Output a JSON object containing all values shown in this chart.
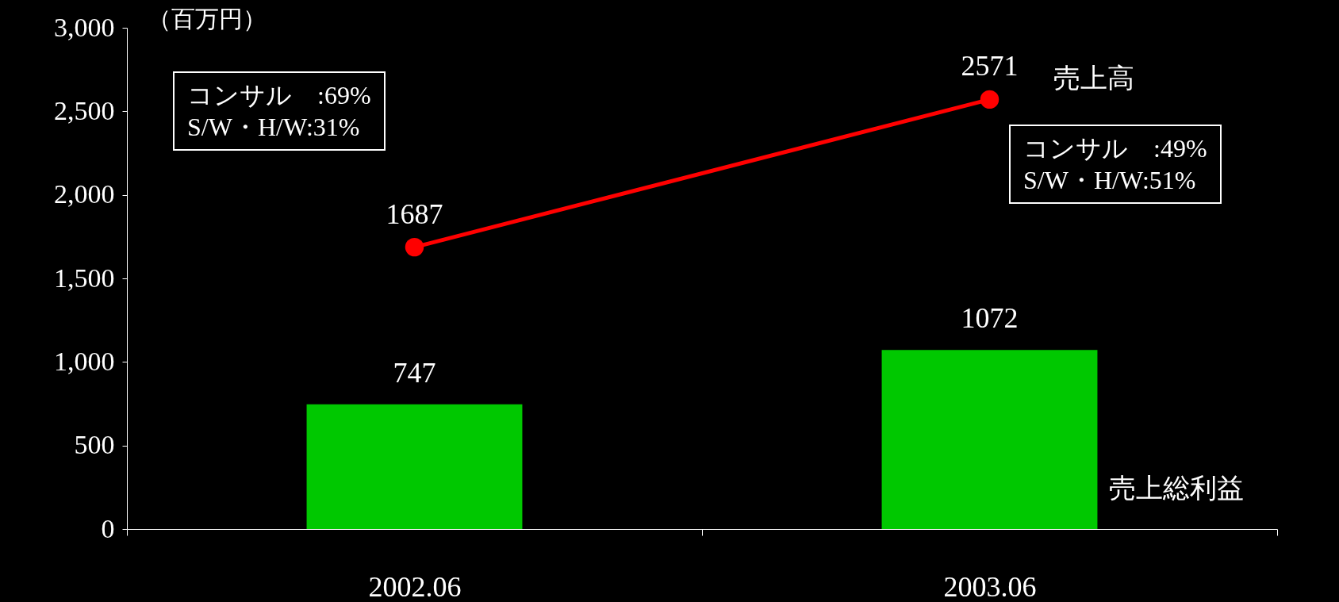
{
  "chart_data": {
    "type": "bar",
    "categories": [
      "2002.06",
      "2003.06"
    ],
    "ylabel": "（百万円）",
    "ylim": [
      0,
      3000
    ],
    "yticks": [
      0,
      500,
      {
        "value": 1000,
        "label": "1,000"
      },
      {
        "value": 1500,
        "label": "1,500"
      },
      {
        "value": 2000,
        "label": "2,000"
      },
      {
        "value": 2500,
        "label": "2,500"
      },
      {
        "value": 3000,
        "label": "3,000"
      }
    ],
    "series": [
      {
        "name": "売上総利益",
        "color": "#00c800",
        "values": [
          747,
          1072
        ]
      },
      {
        "name": "売上高",
        "type": "line",
        "color": "#ff0000",
        "values": [
          1687,
          2571
        ]
      }
    ],
    "data_labels": true,
    "marker": "circle",
    "grid": false,
    "annotations": [
      "コンサル　:69%",
      "S/W・H/W:31%",
      "コンサル　:49%",
      "S/W・H/W:51%"
    ]
  }
}
